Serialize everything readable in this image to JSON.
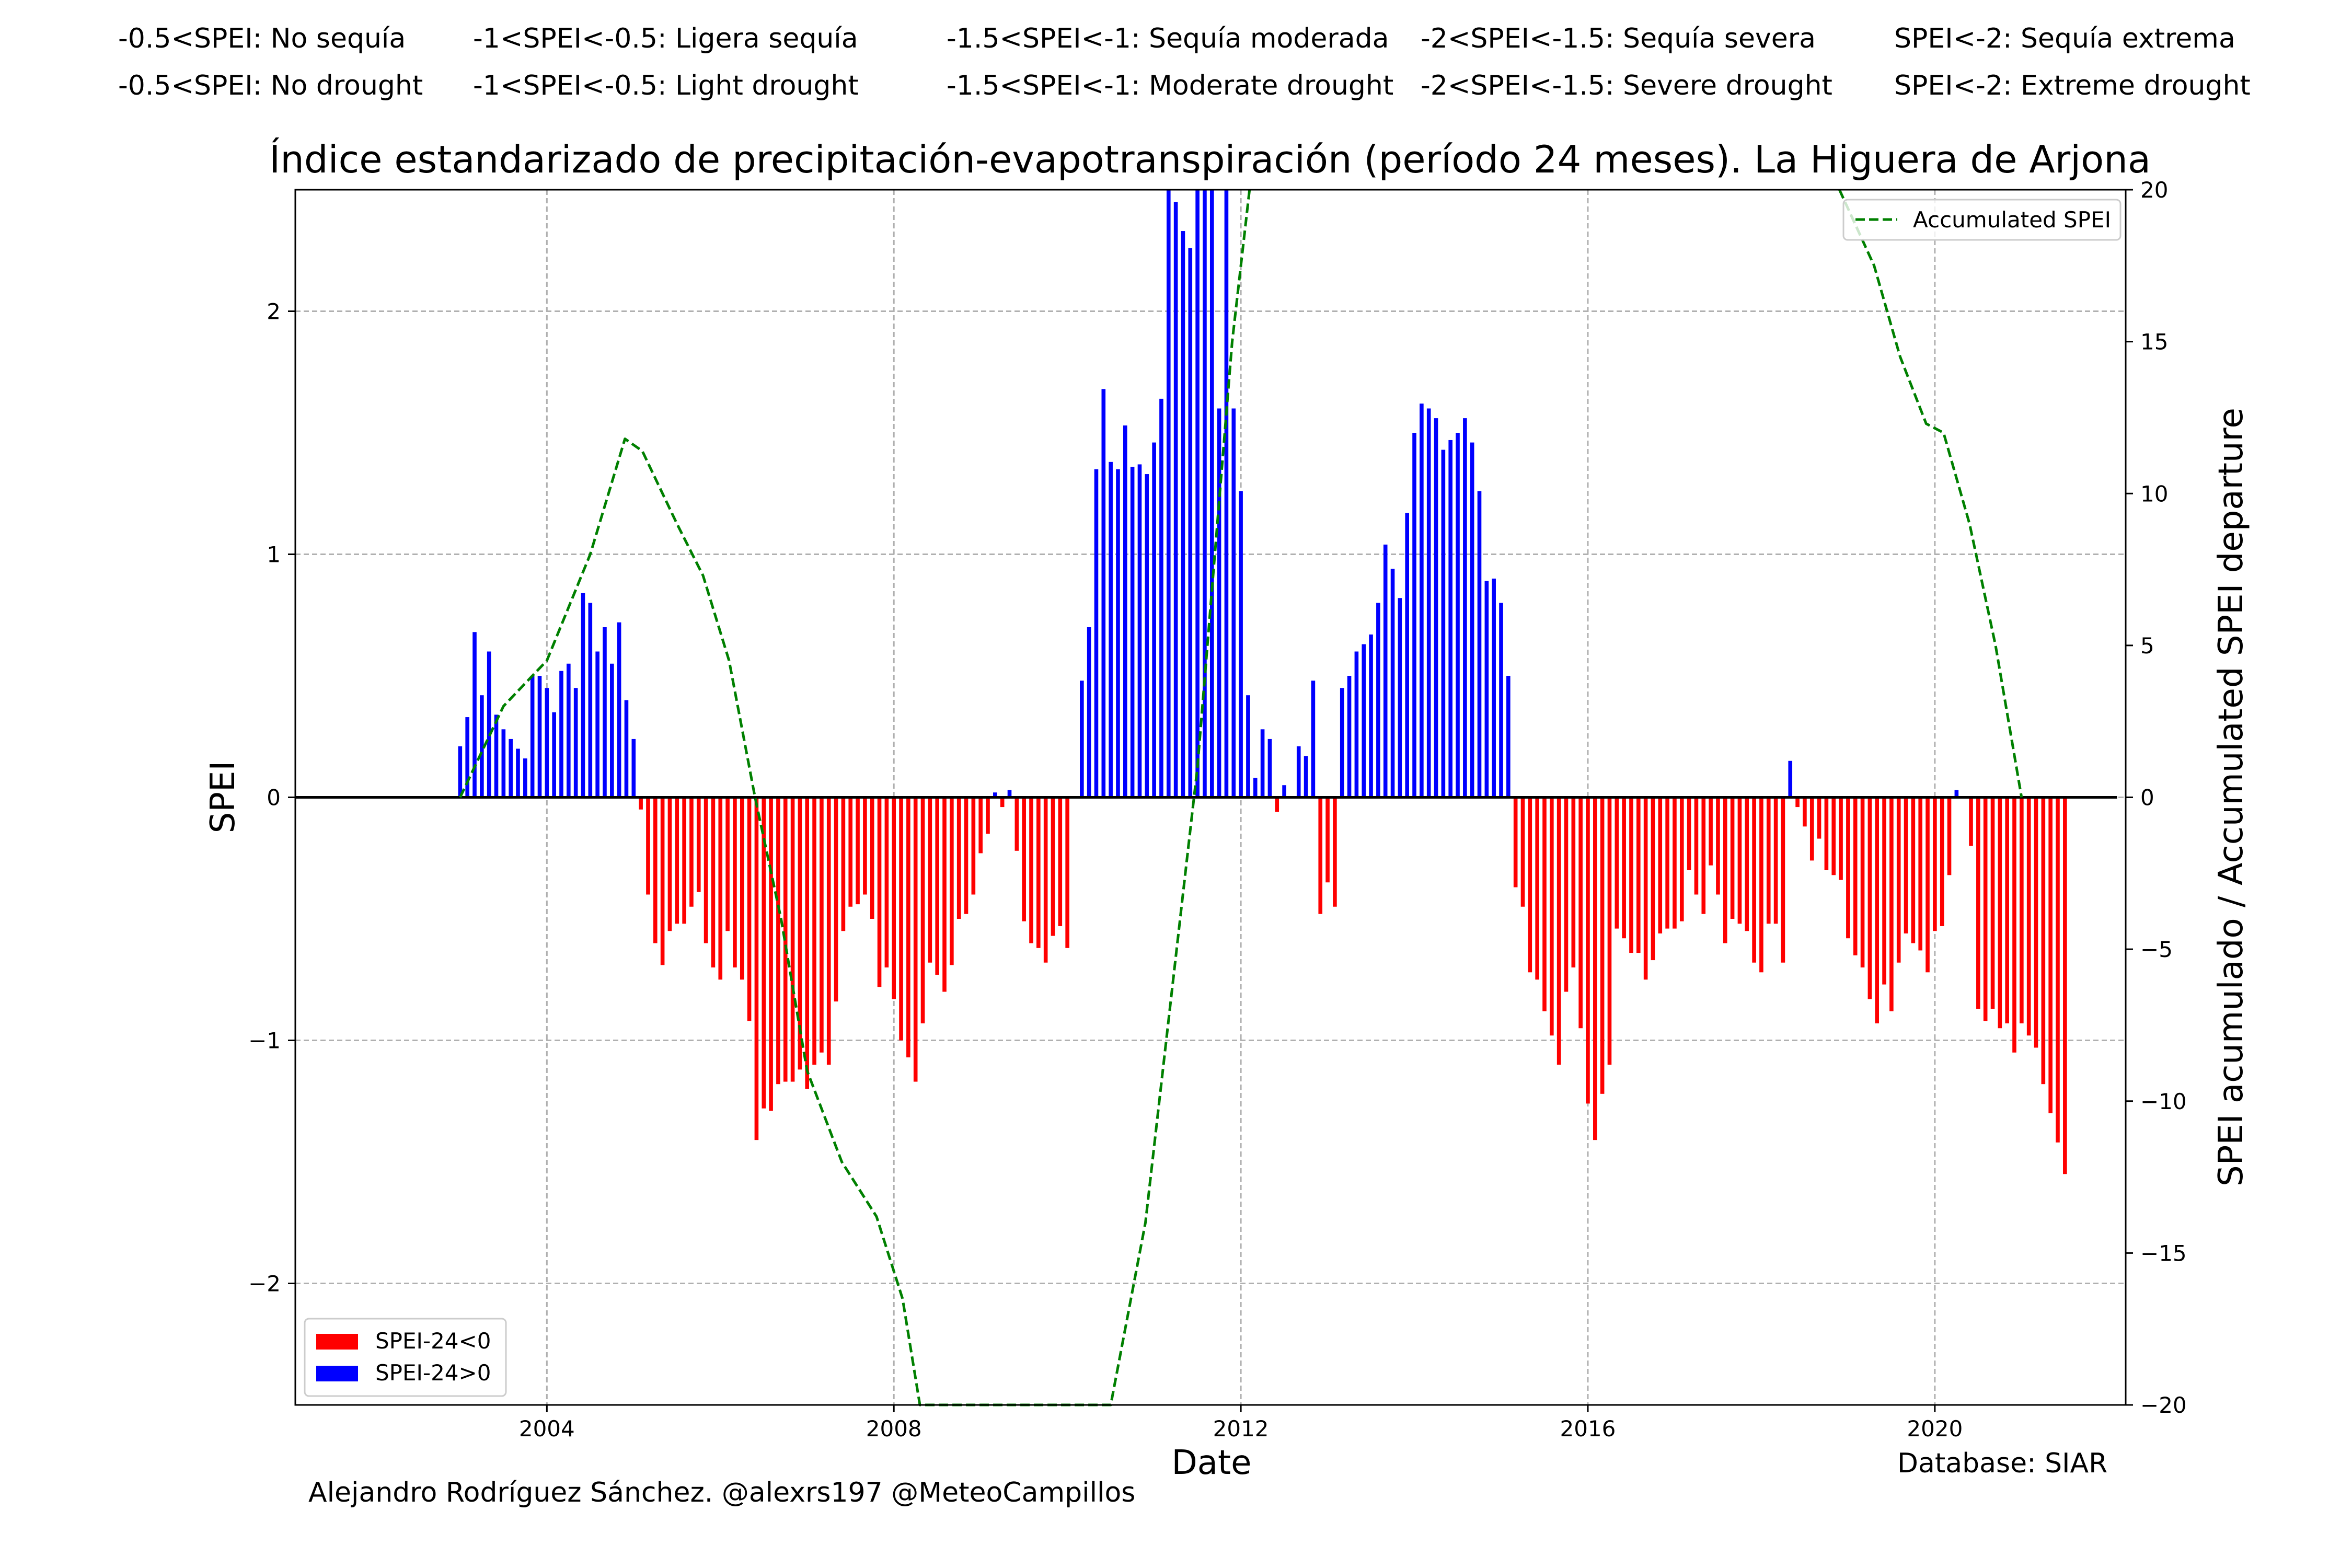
{
  "header": {
    "spanish": [
      "-0.5<SPEI: No sequía",
      "-1<SPEI<-0.5: Ligera sequía",
      "-1.5<SPEI<-1: Sequía moderada",
      "-2<SPEI<-1.5: Sequía severa",
      "SPEI<-2: Sequía extrema"
    ],
    "english": [
      "-0.5<SPEI: No drought",
      "-1<SPEI<-0.5: Light drought",
      "-1.5<SPEI<-1: Moderate drought",
      "-2<SPEI<-1.5: Severe drought",
      "SPEI<-2: Extreme drought"
    ]
  },
  "footer": {
    "author": "Alejandro Rodríguez Sánchez. @alexrs197 @MeteoCampillos",
    "database": "Database: SIAR"
  },
  "colors": {
    "negative": "#ff0000",
    "positive": "#0000ff",
    "accumulated": "#008000",
    "grid": "#b0b0b0",
    "zero_line": "#000000"
  },
  "chart_data": {
    "type": "bar",
    "title": "Índice estandarizado de precipitación-evapotranspiración (período 24 meses). La Higuera de Arjona",
    "xlabel": "Date",
    "ylabel": "SPEI",
    "y2label": "SPEI acumulado / Accumulated SPEI departure",
    "xlim": [
      2001.1,
      2022.2
    ],
    "ylim": [
      -2.5,
      2.5
    ],
    "y2lim": [
      -20,
      20
    ],
    "xticks": [
      2004,
      2008,
      2012,
      2016,
      2020
    ],
    "yticks": [
      -2,
      -1,
      0,
      1,
      2
    ],
    "y2ticks": [
      -20,
      -15,
      -10,
      -5,
      0,
      5,
      10,
      15,
      20
    ],
    "grid": true,
    "legend_bars": {
      "placement": "lower-left",
      "entries": [
        "SPEI-24<0",
        "SPEI-24>0"
      ]
    },
    "legend_line": {
      "placement": "upper-right",
      "entries": [
        "Accumulated SPEI"
      ]
    },
    "start_month": "2003-01",
    "spei_monthly": [
      0.21,
      0.33,
      0.68,
      0.42,
      0.6,
      0.34,
      0.28,
      0.24,
      0.2,
      0.16,
      0.5,
      0.5,
      0.45,
      0.35,
      0.52,
      0.55,
      0.45,
      0.84,
      0.8,
      0.6,
      0.7,
      0.55,
      0.72,
      0.4,
      0.24,
      -0.05,
      -0.4,
      -0.6,
      -0.69,
      -0.55,
      -0.52,
      -0.52,
      -0.45,
      -0.39,
      -0.6,
      -0.7,
      -0.75,
      -0.55,
      -0.7,
      -0.75,
      -0.92,
      -1.41,
      -1.28,
      -1.29,
      -1.18,
      -1.17,
      -1.17,
      -1.12,
      -1.2,
      -1.1,
      -1.05,
      -1.1,
      -0.84,
      -0.55,
      -0.45,
      -0.44,
      -0.4,
      -0.5,
      -0.78,
      -0.7,
      -0.83,
      -1.0,
      -1.07,
      -1.17,
      -0.93,
      -0.68,
      -0.73,
      -0.8,
      -0.69,
      -0.5,
      -0.48,
      -0.4,
      -0.23,
      -0.15,
      0.02,
      -0.04,
      0.03,
      -0.22,
      -0.51,
      -0.6,
      -0.62,
      -0.68,
      -0.57,
      -0.53,
      -0.62,
      0.0,
      0.48,
      0.7,
      1.35,
      1.68,
      1.38,
      1.35,
      1.53,
      1.36,
      1.37,
      1.33,
      1.46,
      1.64,
      2.5,
      2.45,
      2.33,
      2.26,
      2.5,
      2.5,
      2.5,
      1.6,
      2.5,
      1.6,
      1.26,
      0.42,
      0.08,
      0.28,
      0.24,
      -0.06,
      0.05,
      0.0,
      0.21,
      0.17,
      0.48,
      -0.48,
      -0.35,
      -0.45,
      0.45,
      0.5,
      0.6,
      0.63,
      0.67,
      0.8,
      1.04,
      0.94,
      0.82,
      1.17,
      1.5,
      1.62,
      1.6,
      1.56,
      1.43,
      1.47,
      1.5,
      1.56,
      1.46,
      1.26,
      0.89,
      0.9,
      0.8,
      0.5,
      -0.37,
      -0.45,
      -0.72,
      -0.75,
      -0.88,
      -0.98,
      -1.1,
      -0.8,
      -0.7,
      -0.95,
      -1.26,
      -1.41,
      -1.22,
      -1.1,
      -0.54,
      -0.58,
      -0.64,
      -0.64,
      -0.75,
      -0.67,
      -0.56,
      -0.54,
      -0.54,
      -0.51,
      -0.3,
      -0.4,
      -0.48,
      -0.28,
      -0.4,
      -0.6,
      -0.5,
      -0.52,
      -0.55,
      -0.68,
      -0.72,
      -0.52,
      -0.52,
      -0.68,
      0.15,
      -0.04,
      -0.12,
      -0.26,
      -0.17,
      -0.3,
      -0.32,
      -0.34,
      -0.58,
      -0.65,
      -0.7,
      -0.83,
      -0.93,
      -0.77,
      -0.88,
      -0.68,
      -0.56,
      -0.6,
      -0.63,
      -0.72,
      -0.55,
      -0.53,
      -0.32,
      0.03,
      0.0,
      -0.2,
      -0.87,
      -0.92,
      -0.87,
      -0.95,
      -0.93,
      -1.05,
      -0.93,
      -0.98,
      -1.03,
      -1.18,
      -1.3,
      -1.42,
      -1.55
    ],
    "accumulated": {
      "label": "Accumulated SPEI",
      "x": [
        2003.0,
        2003.5,
        2004.0,
        2004.5,
        2004.9,
        2005.1,
        2005.5,
        2005.8,
        2006.1,
        2006.4,
        2006.7,
        2007.0,
        2007.4,
        2007.8,
        2008.1,
        2008.3,
        2010.5,
        2010.9,
        2011.2,
        2011.5,
        2011.9,
        2012.1
      ],
      "y": [
        0.0,
        3.0,
        4.5,
        8.0,
        11.8,
        11.4,
        9.0,
        7.3,
        4.5,
        0.0,
        -4.0,
        -9.0,
        -12.0,
        -13.8,
        -16.5,
        -20.0,
        -20.0,
        -14.0,
        -6.5,
        1.0,
        15.0,
        20.0
      ],
      "x2": [
        2018.9,
        2019.3,
        2019.6,
        2019.9,
        2020.1,
        2020.4,
        2020.7,
        2021.0
      ],
      "y2": [
        20.0,
        17.5,
        14.5,
        12.3,
        12.0,
        9.0,
        5.0,
        0.0
      ]
    }
  }
}
